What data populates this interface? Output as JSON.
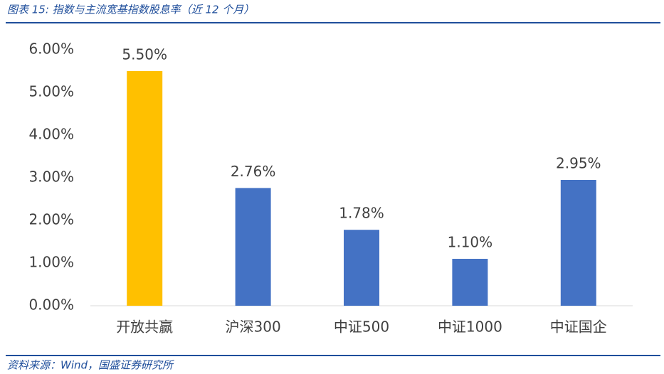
{
  "chart_data": {
    "type": "bar",
    "title": "图表 15:  指数与主流宽基指数股息率（近 12 个月）",
    "source": "资料来源：Wind，国盛证券研究所",
    "categories": [
      "开放共赢",
      "沪深300",
      "中证500",
      "中证1000",
      "中证国企"
    ],
    "values": [
      5.5,
      2.76,
      1.78,
      1.1,
      2.95
    ],
    "value_labels": [
      "5.50%",
      "2.76%",
      "1.78%",
      "1.10%",
      "2.95%"
    ],
    "colors": [
      "#ffc000",
      "#4472c4",
      "#4472c4",
      "#4472c4",
      "#4472c4"
    ],
    "ylim": [
      0,
      6
    ],
    "yticks": [
      {
        "value": 0,
        "label": "0.00%"
      },
      {
        "value": 1,
        "label": "1.00%"
      },
      {
        "value": 2,
        "label": "2.00%"
      },
      {
        "value": 3,
        "label": "3.00%"
      },
      {
        "value": 4,
        "label": "4.00%"
      },
      {
        "value": 5,
        "label": "5.00%"
      },
      {
        "value": 6,
        "label": "6.00%"
      }
    ],
    "grid": false
  }
}
